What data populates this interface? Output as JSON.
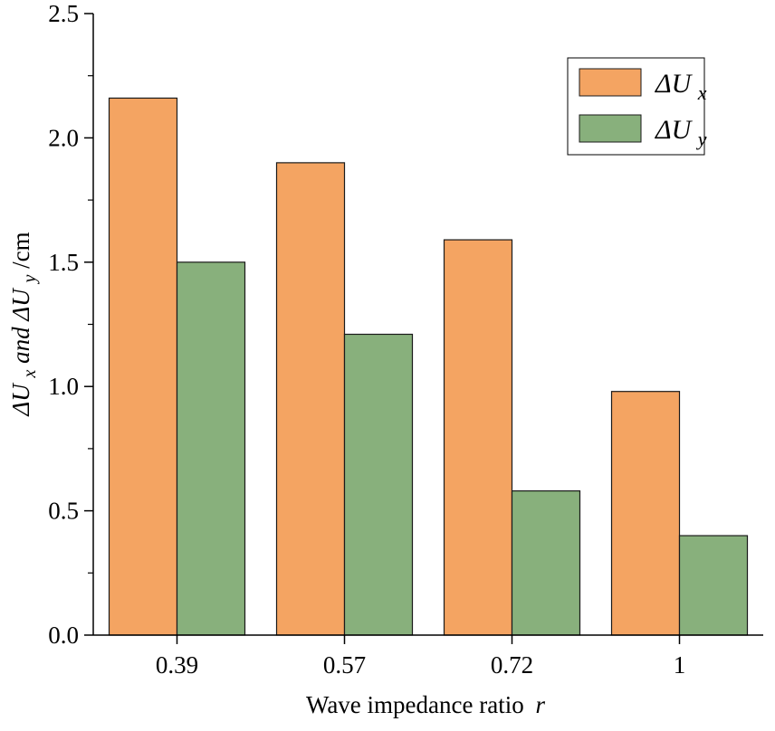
{
  "chart_data": {
    "type": "bar",
    "title": "",
    "xlabel": "Wave impedance ratio",
    "xlabel_var": "r",
    "ylabel_parts": [
      "ΔU",
      "x",
      " and ΔU",
      "y",
      "/cm"
    ],
    "categories": [
      "0.39",
      "0.57",
      "0.72",
      "1"
    ],
    "series": [
      {
        "name": "ΔUx",
        "name_main": "ΔU",
        "name_sub": "x",
        "color": "#F4A462",
        "values": [
          2.16,
          1.9,
          1.59,
          0.98
        ]
      },
      {
        "name": "ΔUy",
        "name_main": "ΔU",
        "name_sub": "y",
        "color": "#88B07C",
        "values": [
          1.5,
          1.21,
          0.58,
          0.4
        ]
      }
    ],
    "ylim": [
      0,
      2.5
    ],
    "yticks": [
      0,
      0.5,
      1,
      1.5,
      2,
      2.5
    ],
    "ytick_labels": [
      "0.0",
      "0.5",
      "1.0",
      "1.5",
      "2.0",
      "2.5"
    ],
    "grid": false,
    "legend_position": "top-right"
  },
  "colors": {
    "axis": "#000000",
    "bar_edge": "#1a1a1a"
  }
}
